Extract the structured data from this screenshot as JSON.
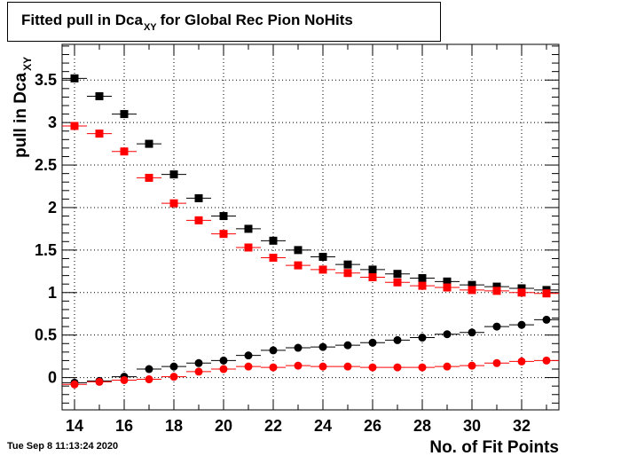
{
  "title": {
    "prefix": "Fitted pull in Dca",
    "subscript": "XY",
    "suffix": "for Global Rec Pion NoHits"
  },
  "timestamp": "Tue Sep  8 11:13:24 2020",
  "colors": {
    "black_series": "#000000",
    "red_series": "#ff0000",
    "grid": "#000000"
  },
  "chart_data": {
    "type": "scatter",
    "xlabel": "No. of Fit Points",
    "ylabel": "pull in Dca",
    "ylabel_subscript": "XY",
    "xlim": [
      13.5,
      33.5
    ],
    "ylim": [
      -0.38,
      3.92
    ],
    "xticks": [
      14,
      16,
      18,
      20,
      22,
      24,
      26,
      28,
      30,
      32
    ],
    "yticks": [
      0,
      0.5,
      1,
      1.5,
      2,
      2.5,
      3,
      3.5
    ],
    "ytick_labels": [
      "0",
      "0.5",
      "1",
      "1.5",
      "2",
      "2.5",
      "3",
      "3.5"
    ],
    "grid": true,
    "x": [
      14,
      15,
      16,
      17,
      18,
      19,
      20,
      21,
      22,
      23,
      24,
      25,
      26,
      27,
      28,
      29,
      30,
      31,
      32,
      33
    ],
    "series": [
      {
        "marker": "square",
        "color": "#000000",
        "values": [
          3.52,
          3.31,
          3.1,
          2.75,
          2.39,
          2.11,
          1.9,
          1.75,
          1.61,
          1.5,
          1.42,
          1.33,
          1.27,
          1.22,
          1.17,
          1.13,
          1.09,
          1.07,
          1.05,
          1.03
        ]
      },
      {
        "marker": "square",
        "color": "#ff0000",
        "values": [
          2.96,
          2.87,
          2.66,
          2.35,
          2.05,
          1.85,
          1.69,
          1.53,
          1.41,
          1.32,
          1.27,
          1.23,
          1.18,
          1.12,
          1.08,
          1.06,
          1.03,
          1.02,
          1.0,
          0.99
        ]
      },
      {
        "marker": "circle",
        "color": "#000000",
        "values": [
          -0.06,
          -0.04,
          0.01,
          0.1,
          0.13,
          0.17,
          0.2,
          0.26,
          0.32,
          0.35,
          0.36,
          0.38,
          0.41,
          0.44,
          0.47,
          0.51,
          0.53,
          0.6,
          0.62,
          0.68
        ]
      },
      {
        "marker": "circle",
        "color": "#ff0000",
        "values": [
          -0.08,
          -0.05,
          -0.03,
          -0.02,
          0.01,
          0.07,
          0.1,
          0.13,
          0.12,
          0.14,
          0.13,
          0.13,
          0.12,
          0.12,
          0.12,
          0.13,
          0.14,
          0.17,
          0.19,
          0.2
        ]
      }
    ]
  }
}
